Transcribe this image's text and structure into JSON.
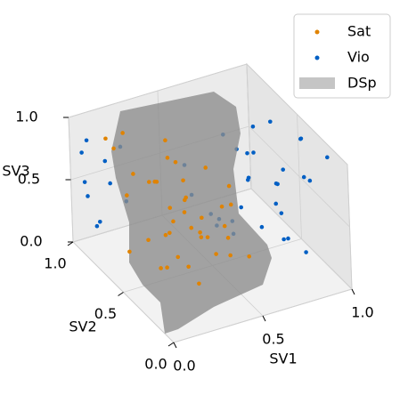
{
  "chart_data": {
    "type": "scatter3d",
    "xlabel": "SV1",
    "ylabel": "SV2",
    "zlabel": "SV3",
    "xlim": [
      0,
      1
    ],
    "ylim": [
      0,
      1
    ],
    "zlim": [
      0,
      1
    ],
    "xticks": [
      {
        "value": 0,
        "label": "0.0"
      },
      {
        "value": 0.5,
        "label": "0.5"
      },
      {
        "value": 1,
        "label": "1.0"
      }
    ],
    "yticks": [
      {
        "value": 0,
        "label": "0.0"
      },
      {
        "value": 0.5,
        "label": "0.5"
      },
      {
        "value": 1,
        "label": "1.0"
      }
    ],
    "zticks": [
      {
        "value": 0,
        "label": "0.0"
      },
      {
        "value": 0.5,
        "label": "0.5"
      },
      {
        "value": 1,
        "label": "1.0"
      }
    ],
    "grid": true,
    "legend": "upper right",
    "series": [
      {
        "name": "Sat",
        "color": "#e08300",
        "x": [
          0.12,
          0.25,
          0.33,
          0.41,
          0.18,
          0.29,
          0.47,
          0.38,
          0.22,
          0.51,
          0.15,
          0.35,
          0.44,
          0.27,
          0.31,
          0.4,
          0.2,
          0.53,
          0.36,
          0.24,
          0.46,
          0.3,
          0.14,
          0.42,
          0.37,
          0.26,
          0.49,
          0.19,
          0.34,
          0.45,
          0.28,
          0.39,
          0.23,
          0.5,
          0.32,
          0.17,
          0.43,
          0.21,
          0.48,
          0.3
        ],
        "y": [
          0.85,
          0.6,
          0.3,
          0.75,
          0.45,
          0.15,
          0.55,
          0.9,
          0.25,
          0.4,
          0.7,
          0.05,
          0.2,
          0.95,
          0.5,
          0.35,
          0.8,
          0.65,
          0.1,
          0.55,
          0.85,
          0.4,
          0.3,
          0.6,
          0.7,
          0.2,
          0.1,
          0.9,
          0.45,
          0.75,
          0.05,
          0.5,
          0.65,
          0.3,
          0.95,
          0.15,
          0.8,
          0.35,
          0.25,
          0.6
        ],
        "z": [
          0.9,
          0.7,
          0.5,
          0.3,
          0.85,
          0.6,
          0.2,
          0.4,
          0.75,
          0.55,
          0.1,
          0.65,
          0.35,
          0.8,
          0.15,
          0.95,
          0.45,
          0.25,
          0.7,
          0.05,
          0.6,
          0.85,
          0.3,
          0.5,
          0.9,
          0.2,
          0.4,
          0.75,
          0.1,
          0.65,
          0.55,
          0.35,
          0.2,
          0.8,
          0.45,
          0.95,
          0.05,
          0.6,
          0.7,
          0.25
        ]
      },
      {
        "name": "Vio",
        "color": "#005fc4",
        "x": [
          0.62,
          0.75,
          0.88,
          0.95,
          0.7,
          0.81,
          0.58,
          0.92,
          0.66,
          0.85,
          0.78,
          0.99,
          0.64,
          0.73,
          0.9,
          0.83,
          0.6,
          0.97,
          0.69,
          0.87,
          0.77,
          0.56,
          0.93,
          0.71,
          0.8,
          0.65,
          0.96,
          0.74,
          0.86,
          0.59,
          0.1,
          0.05,
          0.2,
          0.08,
          0.15,
          0.03,
          0.12,
          0.18,
          0.06,
          0.25
        ],
        "y": [
          0.2,
          0.5,
          0.8,
          0.3,
          0.65,
          0.1,
          0.9,
          0.55,
          0.4,
          0.75,
          0.05,
          0.45,
          0.7,
          0.25,
          0.95,
          0.35,
          0.6,
          0.15,
          0.85,
          0.5,
          0.3,
          0.8,
          0.65,
          0.1,
          0.9,
          0.55,
          0.4,
          0.2,
          0.7,
          0.35,
          0.9,
          0.95,
          0.85,
          0.98,
          0.92,
          0.88,
          0.97,
          0.93,
          0.99,
          0.9
        ],
        "z": [
          0.5,
          0.8,
          0.3,
          0.65,
          0.15,
          0.9,
          0.45,
          0.2,
          0.7,
          0.55,
          0.35,
          0.85,
          0.1,
          0.6,
          0.4,
          0.75,
          0.25,
          0.95,
          0.05,
          0.5,
          0.7,
          0.3,
          0.85,
          0.45,
          0.6,
          0.15,
          0.9,
          0.35,
          0.8,
          0.55,
          0.2,
          0.5,
          0.8,
          0.35,
          0.65,
          0.9,
          0.1,
          0.45,
          0.7,
          0.3
        ]
      }
    ],
    "surface": {
      "name": "DSp",
      "color": "#8c8c8c"
    }
  }
}
